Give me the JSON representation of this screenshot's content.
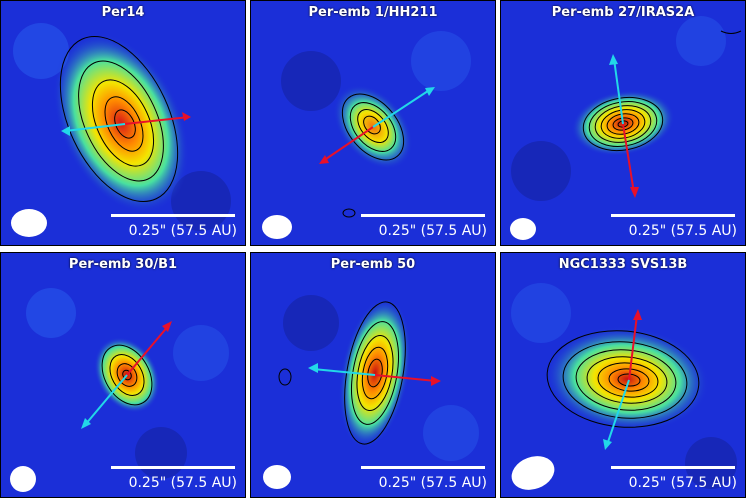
{
  "scale_label": "0.25\" (57.5 AU)",
  "colors": {
    "background_low": "#1b2fd8",
    "peak": "#d81818",
    "redshifted_arrow": "#e8102a",
    "blueshifted_arrow": "#22d8e8",
    "contour": "#000000",
    "beam": "#ffffff"
  },
  "panels": [
    {
      "title": "Per14",
      "source_angle": 65,
      "red_angle": -8,
      "blue_angle": 190
    },
    {
      "title": "Per-emb 1/HH211",
      "source_angle": 40,
      "red_angle": 145,
      "blue_angle": -35
    },
    {
      "title": "Per-emb 27/IRAS2A",
      "source_angle": -10,
      "red_angle": 80,
      "blue_angle": -100
    },
    {
      "title": "Per-emb 30/B1",
      "source_angle": 60,
      "red_angle": -50,
      "blue_angle": 130
    },
    {
      "title": "Per-emb 50",
      "source_angle": 80,
      "red_angle": 5,
      "blue_angle": 185
    },
    {
      "title": "NGC1333 SVS13B",
      "source_angle": 5,
      "red_angle": -80,
      "blue_angle": 105
    }
  ]
}
